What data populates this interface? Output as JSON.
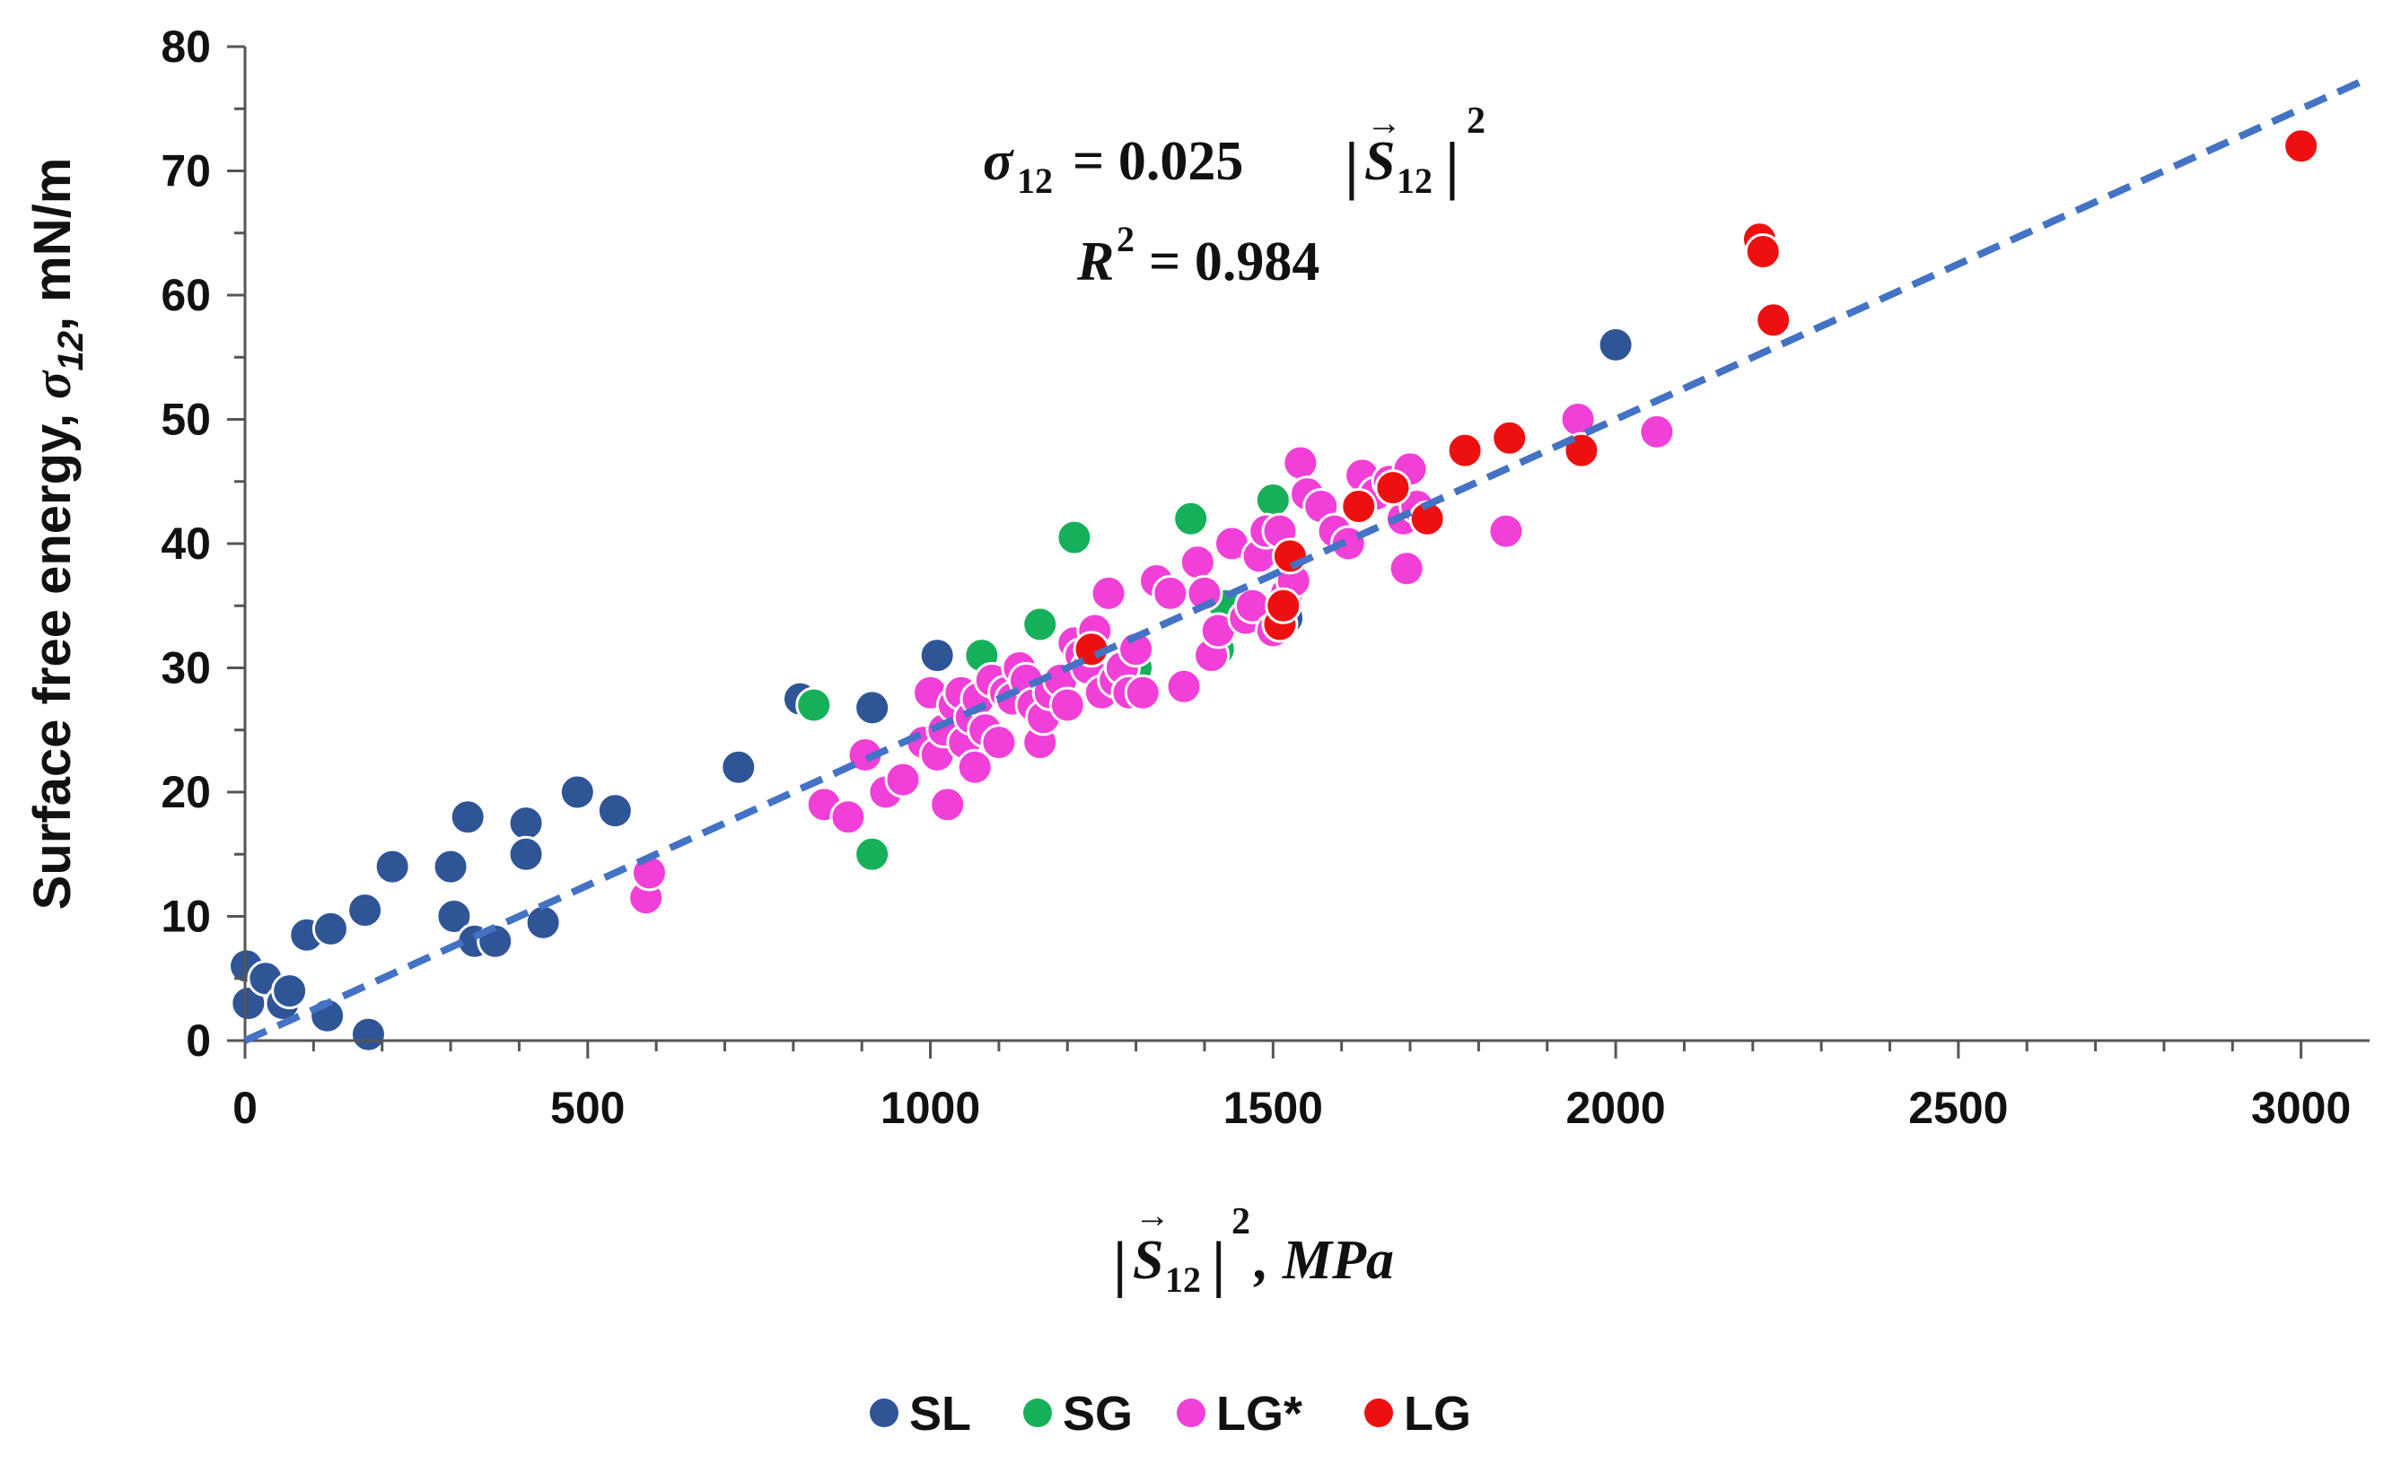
{
  "chart_data": {
    "type": "scatter",
    "ylabel_main": "Surface free energy, ",
    "ylabel_symbol": "σ",
    "ylabel_sub": "12",
    "ylabel_tail": ", mN/m",
    "xlabel": {
      "bar": "|",
      "symbol": "S",
      "arrow": "→",
      "sub": "12",
      "power": "2",
      "tail": ", MPa"
    },
    "equation": {
      "lhs_symbol": "σ",
      "lhs_sub": "12",
      "rhs": "= 0.025",
      "bar": "|",
      "symbol": "S",
      "arrow": "→",
      "sub": "12",
      "power": "2"
    },
    "r2": {
      "symbol": "R",
      "power": "2",
      "value": "= 0.984"
    },
    "xlim": [
      0,
      3100
    ],
    "ylim": [
      0,
      80
    ],
    "xticks": [
      "0",
      "500",
      "1000",
      "1500",
      "2000",
      "2500",
      "3000"
    ],
    "yticks": [
      "0",
      "10",
      "20",
      "30",
      "40",
      "50",
      "60",
      "70",
      "80"
    ],
    "trendline": {
      "slope": 0.025,
      "intercept": 0,
      "x_range": [
        0,
        3100
      ],
      "color": "#4472C4"
    },
    "series": [
      {
        "name": "SL",
        "color": "#2F5597",
        "x": [
          2,
          5,
          30,
          55,
          65,
          90,
          120,
          125,
          175,
          180,
          215,
          300,
          305,
          325,
          335,
          365,
          410,
          410,
          435,
          485,
          540,
          720,
          810,
          915,
          1010,
          1520,
          2000
        ],
        "y": [
          6,
          3,
          5,
          3,
          4,
          8.5,
          2,
          9,
          10.5,
          0.5,
          14,
          14,
          10,
          18,
          8,
          8,
          17.5,
          15,
          9.5,
          20,
          18.5,
          22,
          27.5,
          26.8,
          31,
          34,
          56
        ]
      },
      {
        "name": "SG",
        "color": "#17B05A",
        "x": [
          830,
          915,
          1075,
          1160,
          1210,
          1300,
          1380,
          1430,
          1500,
          1420
        ],
        "y": [
          27,
          15,
          31,
          33.5,
          40.5,
          30,
          42,
          35,
          43.5,
          31.5
        ]
      },
      {
        "name": "LG*",
        "color": "#F040D8",
        "x": [
          585,
          590,
          845,
          880,
          905,
          935,
          960,
          990,
          1000,
          1010,
          1020,
          1025,
          1035,
          1045,
          1050,
          1060,
          1065,
          1070,
          1080,
          1090,
          1100,
          1110,
          1120,
          1130,
          1140,
          1150,
          1160,
          1165,
          1175,
          1190,
          1200,
          1210,
          1220,
          1230,
          1240,
          1250,
          1260,
          1270,
          1280,
          1290,
          1300,
          1310,
          1330,
          1350,
          1370,
          1390,
          1400,
          1410,
          1420,
          1440,
          1460,
          1470,
          1480,
          1490,
          1500,
          1510,
          1520,
          1530,
          1540,
          1550,
          1570,
          1590,
          1610,
          1630,
          1650,
          1670,
          1690,
          1695,
          1700,
          1710,
          1840,
          1945,
          2060
        ],
        "y": [
          11.5,
          13.5,
          19,
          18,
          23,
          20,
          21,
          24,
          28,
          23,
          25,
          19,
          27,
          28,
          24,
          26,
          22,
          27.5,
          25,
          29,
          24,
          28,
          27.5,
          30,
          29,
          27,
          24,
          26,
          28,
          29,
          27,
          32,
          31,
          30,
          33,
          28,
          36,
          29,
          30,
          28,
          31.5,
          28,
          37,
          36,
          28.5,
          38.5,
          36,
          31,
          33,
          40,
          34,
          35,
          39,
          41,
          33,
          41,
          36,
          37,
          46.5,
          44,
          43,
          41,
          40,
          45.5,
          44,
          45,
          42,
          38,
          46,
          43,
          41,
          50,
          49
        ]
      },
      {
        "name": "LG",
        "color": "#EE1010",
        "x": [
          1235,
          1510,
          1515,
          1525,
          1625,
          1675,
          1725,
          1780,
          1845,
          1950,
          2210,
          2215,
          2230,
          3000
        ],
        "y": [
          31.5,
          33.5,
          35,
          39,
          43,
          44.5,
          42,
          47.5,
          48.5,
          47.5,
          64.5,
          63.5,
          58,
          72
        ]
      }
    ]
  }
}
